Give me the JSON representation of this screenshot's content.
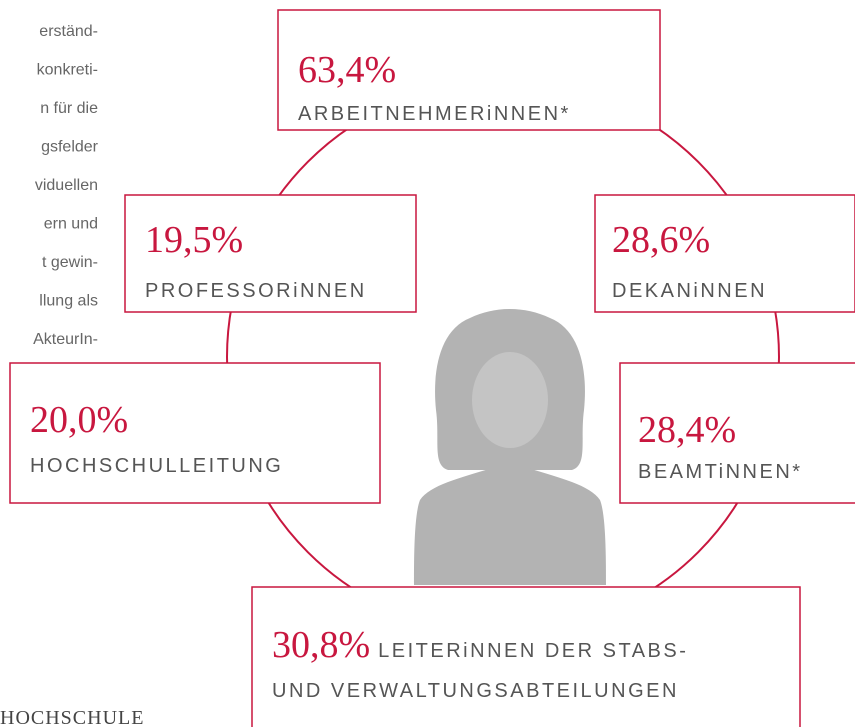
{
  "left_text": {
    "lines": [
      "erständ-",
      "konkreti-",
      "n für die",
      "gsfelder",
      "viduellen",
      "ern  und",
      "t gewin-",
      "llung als",
      "AkteurIn-"
    ]
  },
  "stats": [
    {
      "value": "63,4%",
      "label": "ARBEITNEHMERiNNEN*"
    },
    {
      "value": "19,5%",
      "label": "PROFESSORiNNEN"
    },
    {
      "value": "28,6%",
      "label": "DEKANiNNEN"
    },
    {
      "value": "20,0%",
      "label": "HOCHSCHULLEITUNG"
    },
    {
      "value": "28,4%",
      "label": "BEAMTiNNEN*"
    },
    {
      "value": "30,8%",
      "label": "LEITERiNNEN DER STABS-",
      "label_2": "UND VERWALTUNGSABTEILUNGEN"
    }
  ],
  "footer": "HOCHSCHULE"
}
